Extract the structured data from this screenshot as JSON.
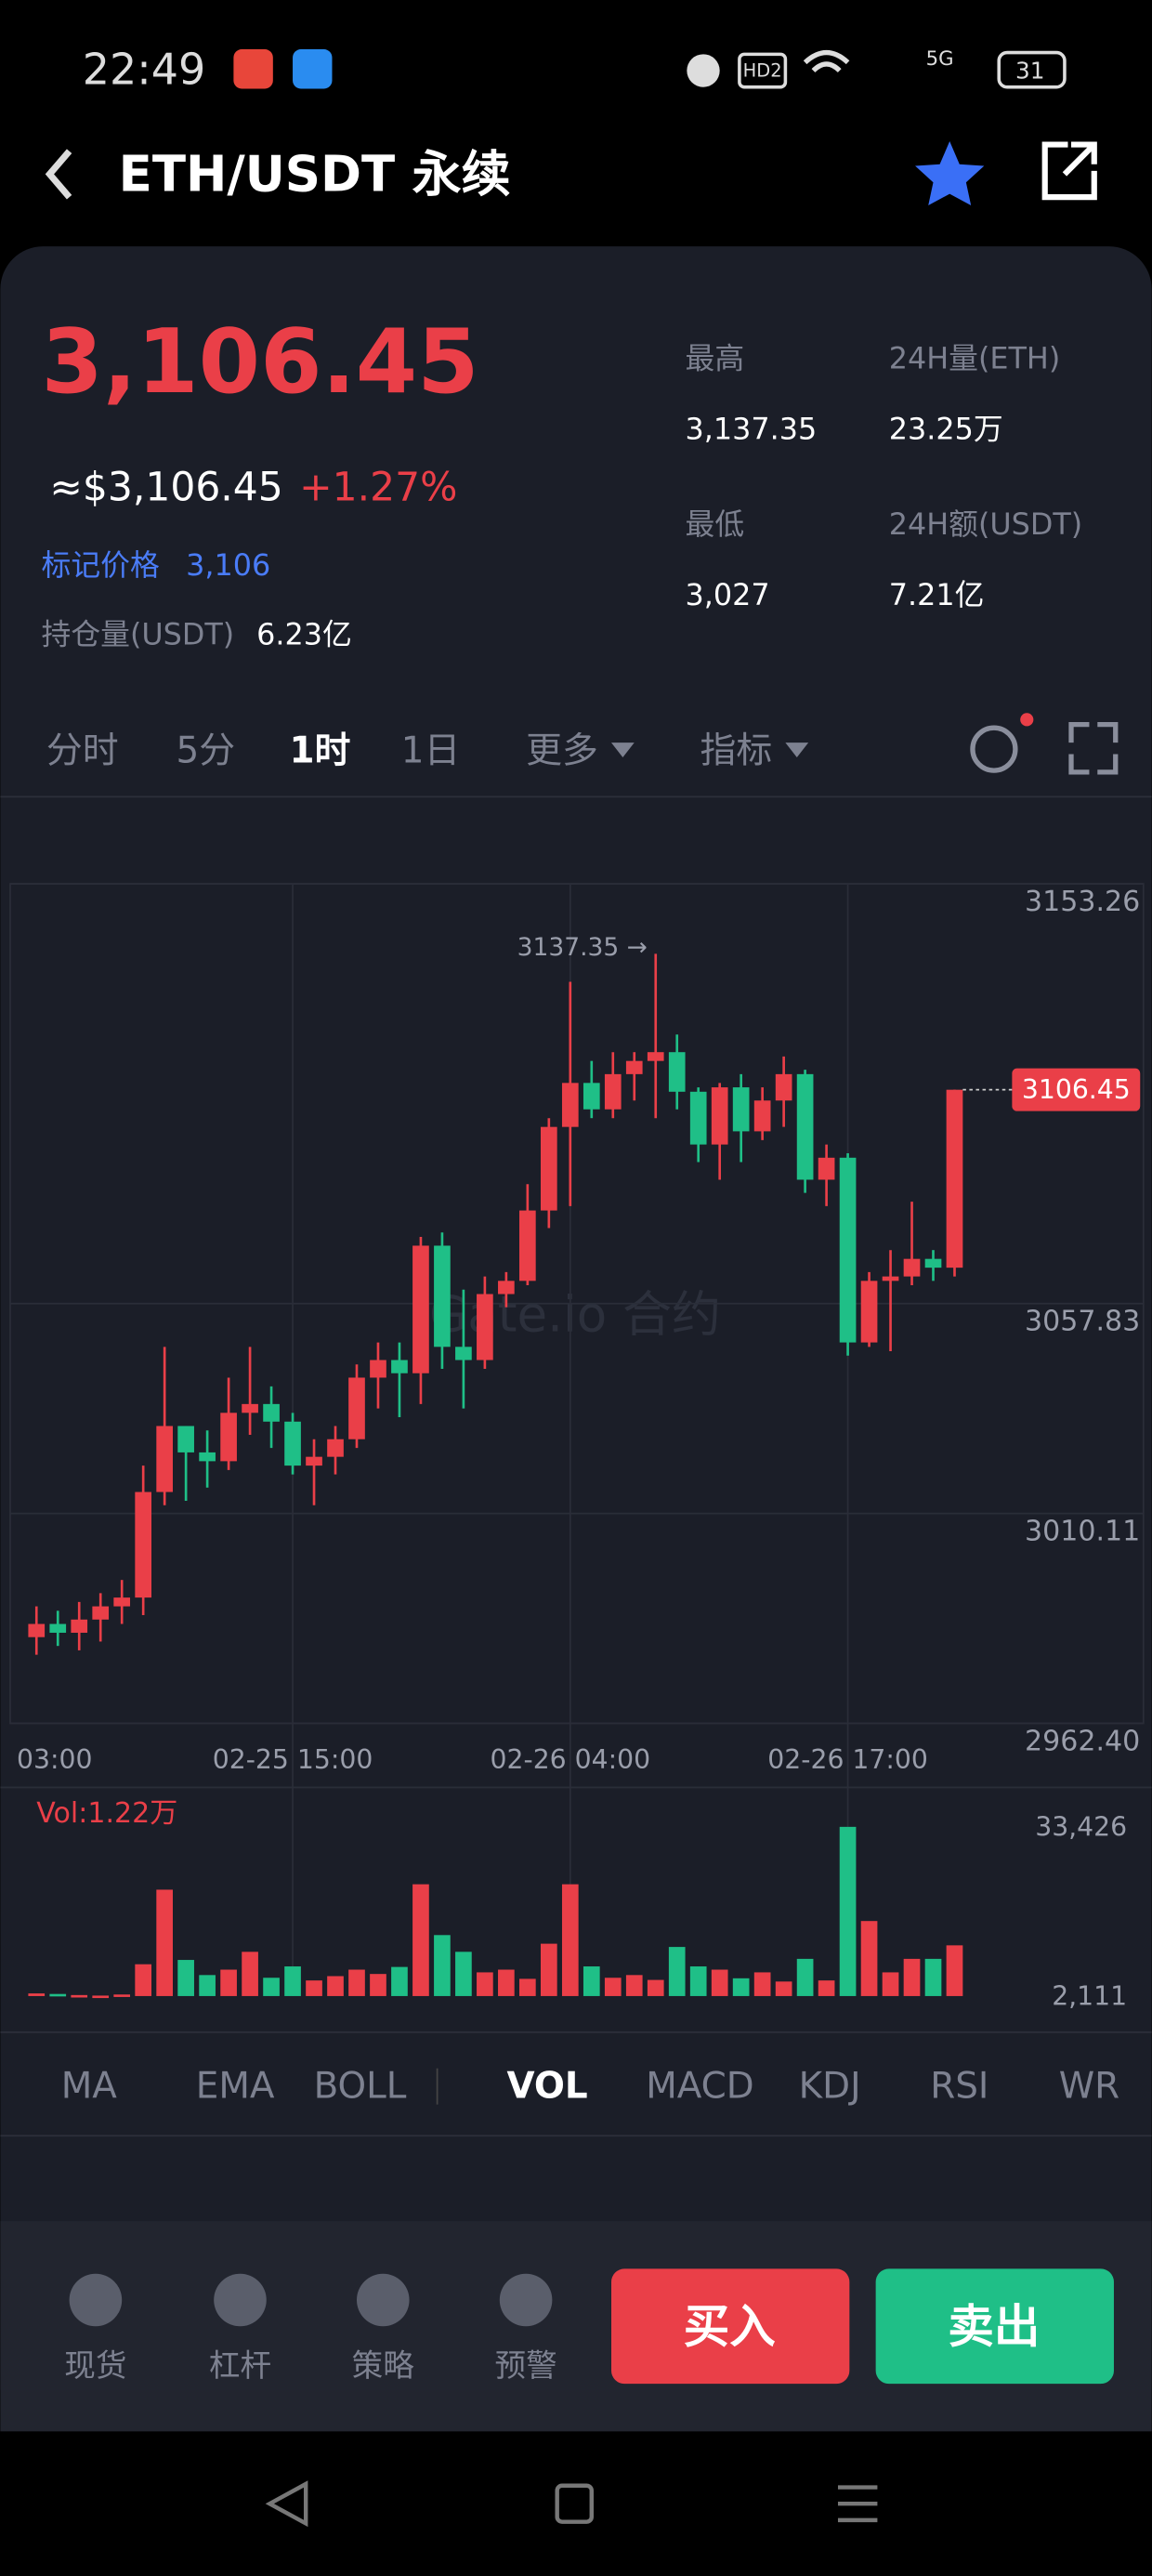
{
  "status_bar": {
    "time": "22:49",
    "hd": "HD2",
    "network": "5G",
    "battery": "31"
  },
  "header": {
    "title": "ETH/USDT 永续"
  },
  "ticker": {
    "last_price": "3,106.45",
    "usd_price": "≈$3,106.45",
    "change": "+1.27%",
    "mark_price_label": "标记价格",
    "mark_price": "3,106",
    "open_interest_label": "持仓量(USDT)",
    "open_interest": "6.23亿",
    "stats": [
      {
        "label": "最高",
        "value": "3,137.35"
      },
      {
        "label": "24H量(ETH)",
        "value": "23.25万"
      },
      {
        "label": "最低",
        "value": "3,027"
      },
      {
        "label": "24H额(USDT)",
        "value": "7.21亿"
      }
    ]
  },
  "timeframe_tabs": {
    "items": [
      "分时",
      "5分",
      "1时",
      "1日",
      "更多",
      "指标"
    ],
    "active": 2
  },
  "chart_data": {
    "type": "candlestick",
    "up_color": "#ea3f48",
    "down_color": "#1fbf87",
    "grid": true,
    "categories": [
      "03:00",
      null,
      null,
      null,
      null,
      null,
      null,
      null,
      null,
      null,
      null,
      null,
      "02-25 15:00",
      null,
      null,
      null,
      null,
      null,
      null,
      null,
      null,
      null,
      null,
      null,
      null,
      "02-26 04:00",
      null,
      null,
      null,
      null,
      null,
      null,
      null,
      null,
      null,
      null,
      null,
      null,
      "02-26 17:00",
      null,
      null,
      null,
      null,
      null
    ],
    "open": [
      2982,
      2985,
      2983,
      2986,
      2989,
      2991,
      3015,
      3030,
      3024,
      3022,
      3033,
      3035,
      3031,
      3021,
      3023,
      3027,
      3041,
      3045,
      3042,
      3071,
      3048,
      3045,
      3060,
      3063,
      3079,
      3098,
      3108,
      3102,
      3110,
      3113,
      3115,
      3106,
      3094,
      3107,
      3097,
      3104,
      3110,
      3086,
      3091,
      3049,
      3063,
      3064,
      3068,
      3066
    ],
    "high": [
      2989,
      2988,
      2990,
      2992,
      2995,
      3021,
      3048,
      3030,
      3029,
      3041,
      3048,
      3039,
      3033,
      3027,
      3030,
      3044,
      3049,
      3049,
      3073,
      3074,
      3061,
      3064,
      3065,
      3085,
      3100,
      3131,
      3113,
      3115,
      3115,
      3137.35,
      3119,
      3107,
      3108,
      3110,
      3107,
      3114,
      3111,
      3094,
      3092,
      3065,
      3070,
      3081,
      3070,
      3106.45
    ],
    "low": [
      2978,
      2980,
      2979,
      2981,
      2985,
      2987,
      3012,
      3013,
      3016,
      3020,
      3028,
      3025,
      3019,
      3012,
      3019,
      3025,
      3034,
      3032,
      3035,
      3043,
      3034,
      3043,
      3057,
      3062,
      3075,
      3080,
      3100,
      3100,
      3104,
      3100,
      3102,
      3090,
      3086,
      3090,
      3095,
      3098,
      3083,
      3080,
      3046,
      3048,
      3047,
      3062,
      3063,
      3064
    ],
    "close": [
      2985,
      2983,
      2986,
      2989,
      2991,
      3015,
      3030,
      3024,
      3022,
      3033,
      3035,
      3031,
      3021,
      3023,
      3027,
      3041,
      3045,
      3042,
      3071,
      3048,
      3045,
      3060,
      3063,
      3079,
      3098,
      3108,
      3102,
      3110,
      3113,
      3115,
      3106,
      3094,
      3107,
      3097,
      3104,
      3110,
      3086,
      3091,
      3049,
      3063,
      3064,
      3068,
      3066,
      3106.45
    ],
    "ylim": [
      2962.4,
      3153.26
    ],
    "yticks": [
      3153.26,
      3057.83,
      3010.11,
      {
        "value": 2962.4,
        "label": "2962.40"
      }
    ],
    "max_label": "3137.35 →",
    "last_price_label": "3106.45",
    "watermark": "Gate.io 合约",
    "volume": {
      "label": "Vol:1.22万",
      "ylim": [
        2111,
        33426
      ],
      "yticks": [
        {
          "value": 33426,
          "label": "33,426"
        },
        {
          "value": 2111,
          "label": "2,111"
        }
      ],
      "values": [
        2600,
        2500,
        2300,
        2200,
        2400,
        8000,
        21800,
        8800,
        6000,
        7000,
        10300,
        5500,
        7600,
        5000,
        5800,
        7000,
        6200,
        7500,
        22800,
        13400,
        10300,
        6500,
        7000,
        5300,
        11800,
        22800,
        7600,
        5500,
        6000,
        5100,
        11200,
        7600,
        7000,
        5400,
        6500,
        4800,
        9000,
        5000,
        33426,
        16000,
        6500,
        9000,
        9000,
        11500
      ]
    }
  },
  "indicator_tabs": {
    "items": [
      "MA",
      "EMA",
      "BOLL",
      "VOL",
      "MACD",
      "KDJ",
      "RSI",
      "WR"
    ],
    "active": 3
  },
  "bottom_nav": {
    "items": [
      "现货",
      "杠杆",
      "策略",
      "预警"
    ],
    "buy": "买入",
    "sell": "卖出"
  }
}
